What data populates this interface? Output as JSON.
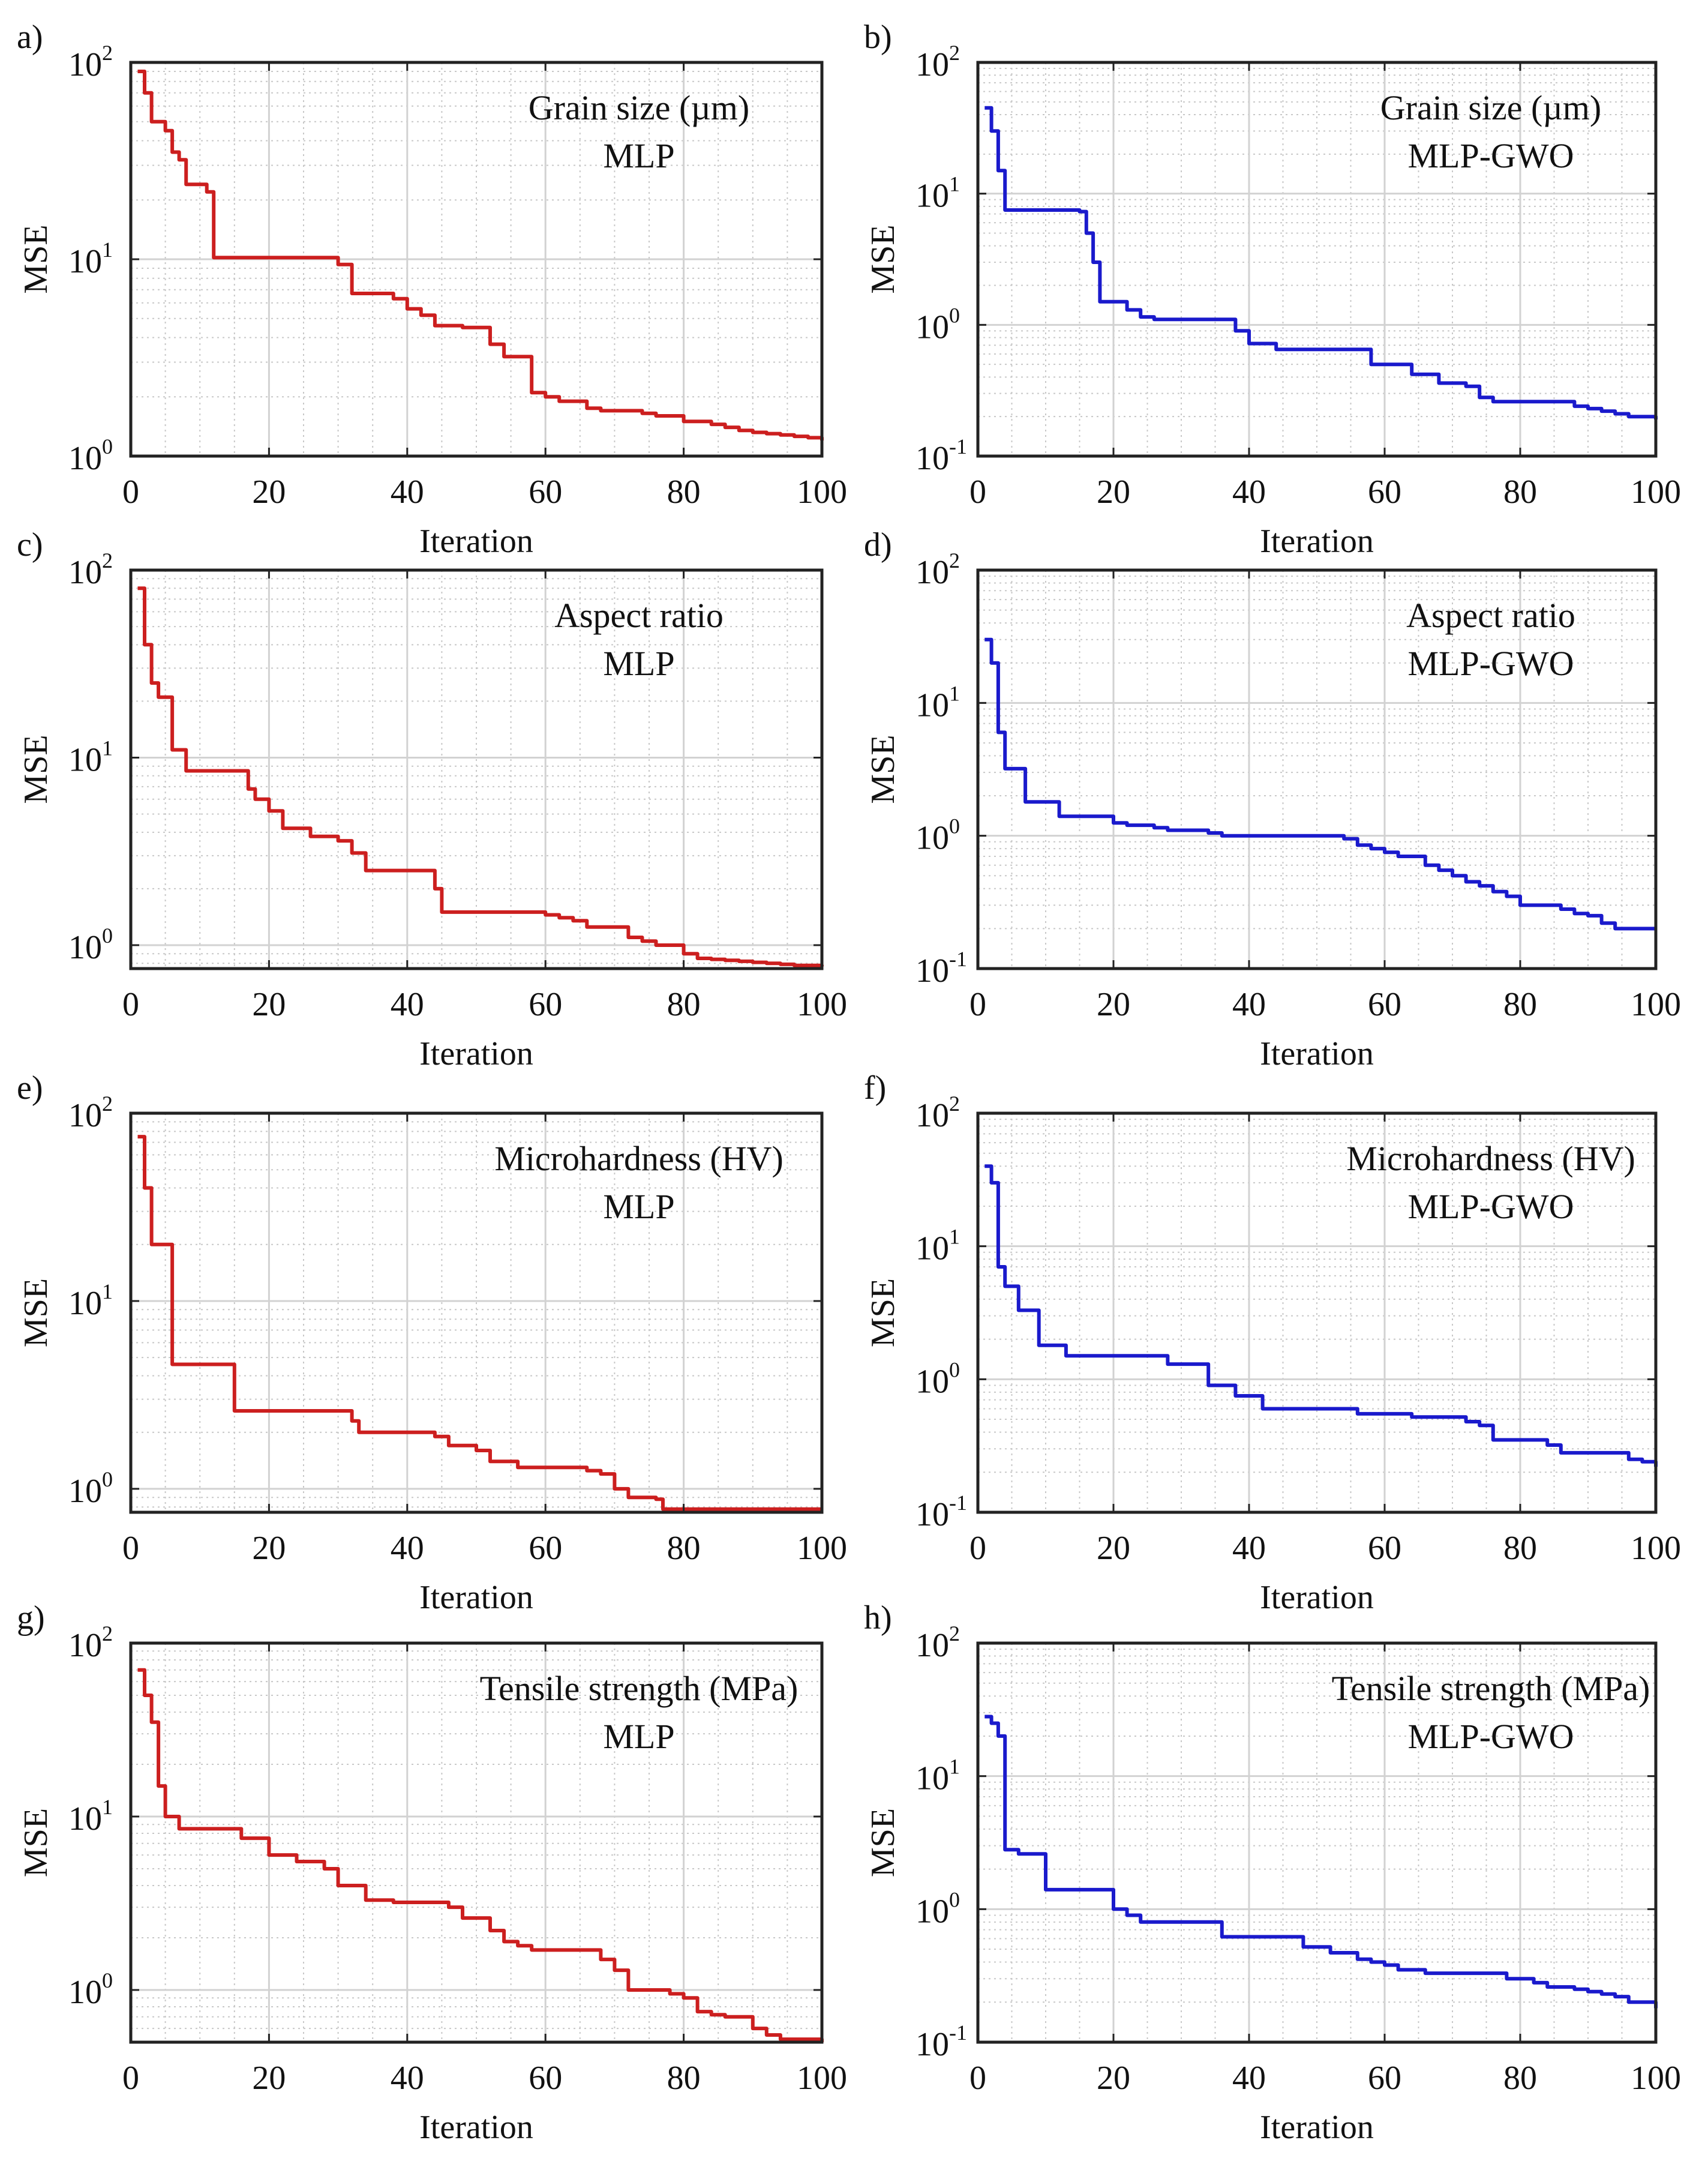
{
  "chart_data": [
    {
      "id": "a",
      "panel_label": "a)",
      "type": "line",
      "scale_y": "log",
      "annotation": [
        "Grain size (µm)",
        "MLP"
      ],
      "xlabel": "Iteration",
      "ylabel": "MSE",
      "xlim": [
        0,
        100
      ],
      "ylim": [
        1,
        100
      ],
      "xticks": [
        0,
        20,
        40,
        60,
        80,
        100
      ],
      "yticks_exp": [
        0,
        1,
        2
      ],
      "color": "#cc1f1f",
      "grid": true,
      "step": true,
      "series": [
        {
          "name": "MLP",
          "x": [
            1,
            2,
            3,
            4,
            5,
            6,
            7,
            8,
            9,
            10,
            11,
            12,
            14,
            16,
            18,
            20,
            22,
            24,
            26,
            28,
            30,
            32,
            34,
            36,
            38,
            40,
            42,
            44,
            46,
            48,
            50,
            52,
            54,
            56,
            58,
            60,
            62,
            64,
            66,
            68,
            70,
            72,
            74,
            76,
            78,
            80,
            82,
            84,
            86,
            88,
            90,
            92,
            94,
            96,
            98,
            100
          ],
          "y": [
            90,
            70,
            50,
            50,
            45,
            35,
            32,
            24,
            24,
            24,
            22,
            10.2,
            10.2,
            10.2,
            10.2,
            10.2,
            10.2,
            10.2,
            10.2,
            10.2,
            9.4,
            6.7,
            6.7,
            6.7,
            6.3,
            5.6,
            5.2,
            4.6,
            4.6,
            4.5,
            4.5,
            3.7,
            3.2,
            3.2,
            2.1,
            2.0,
            1.9,
            1.9,
            1.75,
            1.7,
            1.7,
            1.7,
            1.65,
            1.6,
            1.6,
            1.5,
            1.5,
            1.45,
            1.4,
            1.35,
            1.32,
            1.3,
            1.28,
            1.26,
            1.24,
            1.2
          ]
        }
      ]
    },
    {
      "id": "b",
      "panel_label": "b)",
      "type": "line",
      "scale_y": "log",
      "annotation": [
        "Grain size (µm)",
        "MLP-GWO"
      ],
      "xlabel": "Iteration",
      "ylabel": "MSE",
      "xlim": [
        0,
        100
      ],
      "ylim": [
        0.1,
        100
      ],
      "xticks": [
        0,
        20,
        40,
        60,
        80,
        100
      ],
      "yticks_exp": [
        -1,
        0,
        1,
        2
      ],
      "color": "#1a1acc",
      "grid": true,
      "step": true,
      "series": [
        {
          "name": "MLP-GWO",
          "x": [
            1,
            2,
            3,
            4,
            6,
            8,
            10,
            12,
            14,
            15,
            16,
            17,
            18,
            20,
            22,
            24,
            26,
            28,
            30,
            32,
            34,
            36,
            38,
            40,
            42,
            44,
            46,
            48,
            50,
            52,
            54,
            56,
            58,
            60,
            62,
            64,
            66,
            68,
            70,
            72,
            74,
            76,
            78,
            80,
            82,
            84,
            86,
            88,
            90,
            92,
            94,
            96,
            98,
            100
          ],
          "y": [
            45,
            30,
            15,
            7.5,
            7.5,
            7.5,
            7.5,
            7.5,
            7.5,
            7.3,
            5,
            3,
            1.5,
            1.5,
            1.3,
            1.15,
            1.1,
            1.1,
            1.1,
            1.1,
            1.1,
            1.1,
            0.9,
            0.72,
            0.72,
            0.65,
            0.65,
            0.65,
            0.65,
            0.65,
            0.65,
            0.65,
            0.5,
            0.5,
            0.5,
            0.42,
            0.42,
            0.36,
            0.36,
            0.34,
            0.28,
            0.26,
            0.26,
            0.26,
            0.26,
            0.26,
            0.26,
            0.24,
            0.23,
            0.22,
            0.21,
            0.2,
            0.2,
            0.19
          ]
        }
      ]
    },
    {
      "id": "c",
      "panel_label": "c)",
      "type": "line",
      "scale_y": "log",
      "annotation": [
        "Aspect ratio",
        "MLP"
      ],
      "xlabel": "Iteration",
      "ylabel": "MSE",
      "xlim": [
        0,
        100
      ],
      "ylim": [
        0.75,
        100
      ],
      "xticks": [
        0,
        20,
        40,
        60,
        80,
        100
      ],
      "yticks_exp": [
        0,
        1,
        2
      ],
      "color": "#cc1f1f",
      "grid": true,
      "step": true,
      "series": [
        {
          "name": "MLP",
          "x": [
            1,
            2,
            3,
            4,
            5,
            6,
            7,
            8,
            10,
            12,
            14,
            16,
            17,
            18,
            20,
            22,
            24,
            26,
            28,
            30,
            32,
            34,
            36,
            38,
            40,
            42,
            44,
            45,
            46,
            50,
            55,
            60,
            62,
            64,
            66,
            68,
            70,
            72,
            74,
            76,
            78,
            80,
            82,
            84,
            86,
            88,
            90,
            92,
            94,
            96,
            98,
            100
          ],
          "y": [
            80,
            40,
            25,
            21,
            21,
            11,
            11,
            8.5,
            8.5,
            8.5,
            8.5,
            8.5,
            6.8,
            6,
            5.2,
            4.2,
            4.2,
            3.8,
            3.8,
            3.6,
            3.1,
            2.5,
            2.5,
            2.5,
            2.5,
            2.5,
            2.0,
            1.5,
            1.5,
            1.5,
            1.5,
            1.45,
            1.4,
            1.35,
            1.25,
            1.25,
            1.25,
            1.1,
            1.05,
            1.0,
            1.0,
            0.9,
            0.85,
            0.84,
            0.83,
            0.82,
            0.81,
            0.8,
            0.79,
            0.78,
            0.78,
            0.77
          ]
        }
      ]
    },
    {
      "id": "d",
      "panel_label": "d)",
      "type": "line",
      "scale_y": "log",
      "annotation": [
        "Aspect ratio",
        "MLP-GWO"
      ],
      "xlabel": "Iteration",
      "ylabel": "MSE",
      "xlim": [
        0,
        100
      ],
      "ylim": [
        0.1,
        100
      ],
      "xticks": [
        0,
        20,
        40,
        60,
        80,
        100
      ],
      "yticks_exp": [
        -1,
        0,
        1,
        2
      ],
      "color": "#1a1acc",
      "grid": true,
      "step": true,
      "series": [
        {
          "name": "MLP-GWO",
          "x": [
            1,
            2,
            3,
            4,
            5,
            6,
            7,
            8,
            10,
            12,
            14,
            16,
            18,
            20,
            22,
            24,
            26,
            28,
            30,
            32,
            34,
            36,
            38,
            40,
            42,
            44,
            46,
            48,
            50,
            52,
            54,
            56,
            58,
            60,
            62,
            64,
            66,
            68,
            70,
            72,
            74,
            76,
            78,
            80,
            82,
            84,
            86,
            88,
            90,
            92,
            94,
            96,
            98,
            100
          ],
          "y": [
            30,
            20,
            6,
            3.2,
            3.2,
            3.2,
            1.8,
            1.8,
            1.8,
            1.4,
            1.4,
            1.4,
            1.4,
            1.25,
            1.2,
            1.2,
            1.15,
            1.1,
            1.1,
            1.1,
            1.05,
            1.0,
            1.0,
            1.0,
            1.0,
            1.0,
            1.0,
            1.0,
            1.0,
            1.0,
            0.95,
            0.85,
            0.8,
            0.75,
            0.7,
            0.7,
            0.6,
            0.55,
            0.5,
            0.45,
            0.42,
            0.38,
            0.35,
            0.3,
            0.3,
            0.3,
            0.28,
            0.26,
            0.25,
            0.22,
            0.2,
            0.2,
            0.2,
            0.2
          ]
        }
      ]
    },
    {
      "id": "e",
      "panel_label": "e)",
      "type": "line",
      "scale_y": "log",
      "annotation": [
        "Microhardness (HV)",
        "MLP"
      ],
      "xlabel": "Iteration",
      "ylabel": "MSE",
      "xlim": [
        0,
        100
      ],
      "ylim": [
        0.75,
        100
      ],
      "xticks": [
        0,
        20,
        40,
        60,
        80,
        100
      ],
      "yticks_exp": [
        0,
        1,
        2
      ],
      "color": "#cc1f1f",
      "grid": true,
      "step": true,
      "series": [
        {
          "name": "MLP",
          "x": [
            1,
            2,
            3,
            4,
            6,
            8,
            10,
            12,
            14,
            15,
            16,
            18,
            20,
            22,
            24,
            26,
            28,
            30,
            32,
            33,
            34,
            36,
            38,
            40,
            42,
            44,
            46,
            48,
            50,
            52,
            54,
            56,
            58,
            60,
            62,
            64,
            66,
            68,
            70,
            72,
            74,
            76,
            77,
            78,
            80,
            82,
            84,
            86,
            88,
            90,
            92,
            94,
            96,
            98,
            100
          ],
          "y": [
            75,
            40,
            20,
            20,
            4.6,
            4.6,
            4.6,
            4.6,
            4.6,
            2.6,
            2.6,
            2.6,
            2.6,
            2.6,
            2.6,
            2.6,
            2.6,
            2.6,
            2.3,
            2.0,
            2.0,
            2.0,
            2.0,
            2.0,
            2.0,
            1.9,
            1.7,
            1.7,
            1.6,
            1.4,
            1.4,
            1.3,
            1.3,
            1.3,
            1.3,
            1.3,
            1.25,
            1.2,
            1.0,
            0.9,
            0.9,
            0.88,
            0.78,
            0.78,
            0.78,
            0.78,
            0.78,
            0.78,
            0.78,
            0.78,
            0.78,
            0.78,
            0.78,
            0.78,
            0.78
          ]
        }
      ]
    },
    {
      "id": "f",
      "panel_label": "f)",
      "type": "line",
      "scale_y": "log",
      "annotation": [
        "Microhardness (HV)",
        "MLP-GWO"
      ],
      "xlabel": "Iteration",
      "ylabel": "MSE",
      "xlim": [
        0,
        100
      ],
      "ylim": [
        0.1,
        100
      ],
      "xticks": [
        0,
        20,
        40,
        60,
        80,
        100
      ],
      "yticks_exp": [
        -1,
        0,
        1,
        2
      ],
      "color": "#1a1acc",
      "grid": true,
      "step": true,
      "series": [
        {
          "name": "MLP-GWO",
          "x": [
            1,
            2,
            3,
            4,
            6,
            7,
            8,
            9,
            10,
            12,
            13,
            14,
            16,
            18,
            20,
            22,
            24,
            26,
            28,
            30,
            32,
            34,
            36,
            38,
            40,
            42,
            44,
            46,
            48,
            50,
            52,
            54,
            56,
            58,
            60,
            62,
            64,
            66,
            68,
            70,
            72,
            74,
            76,
            78,
            80,
            82,
            84,
            86,
            88,
            90,
            92,
            94,
            96,
            98,
            100
          ],
          "y": [
            40,
            30,
            7,
            5,
            3.3,
            3.3,
            3.3,
            1.8,
            1.8,
            1.8,
            1.5,
            1.5,
            1.5,
            1.5,
            1.5,
            1.5,
            1.5,
            1.5,
            1.3,
            1.3,
            1.3,
            0.9,
            0.9,
            0.75,
            0.75,
            0.6,
            0.6,
            0.6,
            0.6,
            0.6,
            0.6,
            0.6,
            0.55,
            0.55,
            0.55,
            0.55,
            0.52,
            0.52,
            0.52,
            0.52,
            0.48,
            0.45,
            0.35,
            0.35,
            0.35,
            0.35,
            0.32,
            0.28,
            0.28,
            0.28,
            0.28,
            0.28,
            0.25,
            0.24,
            0.22
          ]
        }
      ]
    },
    {
      "id": "g",
      "panel_label": "g)",
      "type": "line",
      "scale_y": "log",
      "annotation": [
        "Tensile strength (MPa)",
        "MLP"
      ],
      "xlabel": "Iteration",
      "ylabel": "MSE",
      "xlim": [
        0,
        100
      ],
      "ylim": [
        0.5,
        100
      ],
      "xticks": [
        0,
        20,
        40,
        60,
        80,
        100
      ],
      "yticks_exp": [
        0,
        1,
        2
      ],
      "color": "#cc1f1f",
      "grid": true,
      "step": true,
      "series": [
        {
          "name": "MLP",
          "x": [
            1,
            2,
            3,
            4,
            5,
            6,
            7,
            8,
            10,
            12,
            14,
            16,
            18,
            20,
            22,
            24,
            26,
            28,
            30,
            32,
            34,
            36,
            38,
            40,
            42,
            44,
            46,
            48,
            50,
            52,
            54,
            56,
            58,
            60,
            62,
            64,
            66,
            68,
            70,
            72,
            74,
            76,
            78,
            80,
            82,
            84,
            86,
            88,
            90,
            92,
            94,
            96,
            98,
            100
          ],
          "y": [
            70,
            50,
            35,
            15,
            10,
            10,
            8.5,
            8.5,
            8.5,
            8.5,
            8.5,
            7.5,
            7.5,
            6,
            6,
            5.5,
            5.5,
            5,
            4,
            4,
            3.3,
            3.3,
            3.2,
            3.2,
            3.2,
            3.2,
            3.0,
            2.6,
            2.6,
            2.2,
            1.9,
            1.8,
            1.7,
            1.7,
            1.7,
            1.7,
            1.7,
            1.5,
            1.3,
            1.0,
            1.0,
            1.0,
            0.95,
            0.9,
            0.75,
            0.72,
            0.7,
            0.7,
            0.6,
            0.55,
            0.52,
            0.52,
            0.52,
            0.5
          ]
        }
      ]
    },
    {
      "id": "h",
      "panel_label": "h)",
      "type": "line",
      "scale_y": "log",
      "annotation": [
        "Tensile strength (MPa)",
        "MLP-GWO"
      ],
      "xlabel": "Iteration",
      "ylabel": "MSE",
      "xlim": [
        0,
        100
      ],
      "ylim": [
        0.1,
        100
      ],
      "xticks": [
        0,
        20,
        40,
        60,
        80,
        100
      ],
      "yticks_exp": [
        -1,
        0,
        1,
        2
      ],
      "color": "#1a1acc",
      "grid": true,
      "step": true,
      "series": [
        {
          "name": "MLP-GWO",
          "x": [
            1,
            2,
            3,
            4,
            6,
            8,
            10,
            12,
            14,
            16,
            18,
            20,
            22,
            24,
            26,
            28,
            30,
            32,
            34,
            36,
            38,
            40,
            42,
            44,
            46,
            48,
            50,
            52,
            54,
            56,
            58,
            60,
            62,
            64,
            66,
            68,
            70,
            72,
            74,
            76,
            78,
            80,
            82,
            84,
            86,
            88,
            90,
            92,
            94,
            96,
            98,
            100
          ],
          "y": [
            28,
            25,
            20,
            2.8,
            2.6,
            2.6,
            1.4,
            1.4,
            1.4,
            1.4,
            1.4,
            1.0,
            0.9,
            0.8,
            0.8,
            0.8,
            0.8,
            0.8,
            0.8,
            0.62,
            0.62,
            0.62,
            0.62,
            0.62,
            0.62,
            0.52,
            0.52,
            0.47,
            0.47,
            0.42,
            0.4,
            0.38,
            0.35,
            0.35,
            0.33,
            0.33,
            0.33,
            0.33,
            0.33,
            0.33,
            0.3,
            0.3,
            0.28,
            0.26,
            0.26,
            0.25,
            0.24,
            0.23,
            0.22,
            0.2,
            0.2,
            0.18
          ]
        }
      ]
    }
  ]
}
